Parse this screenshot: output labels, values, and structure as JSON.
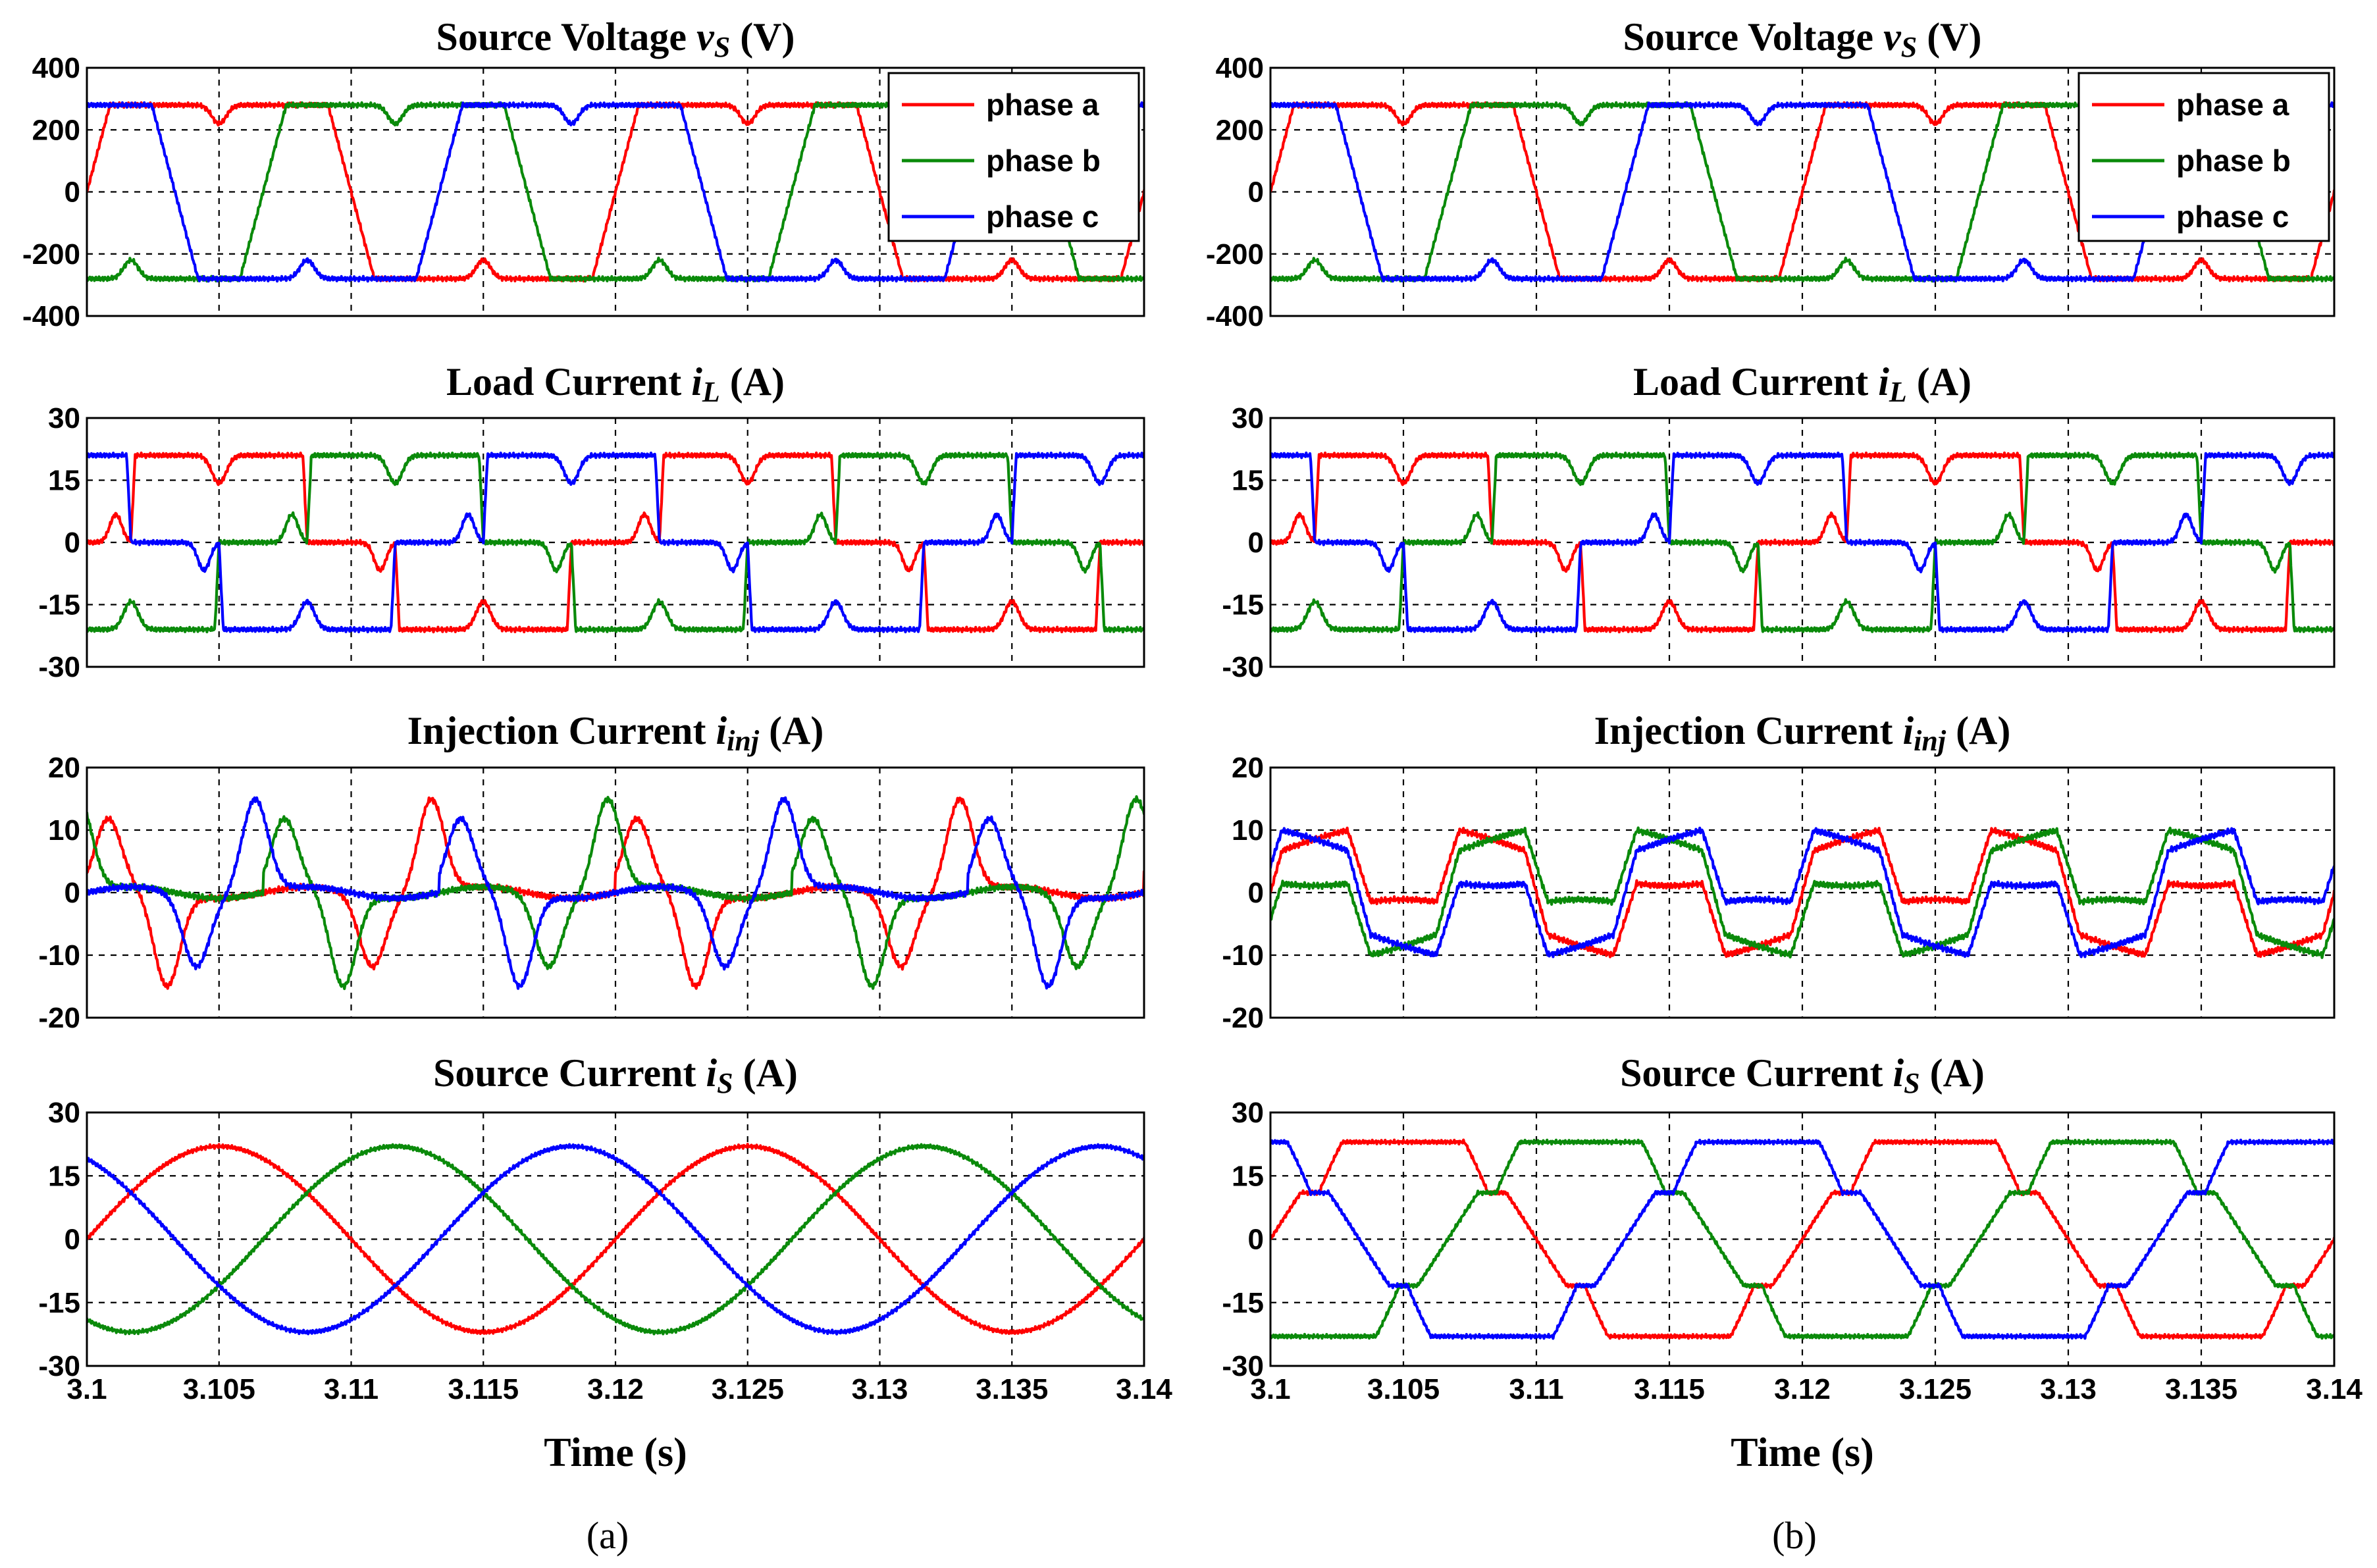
{
  "colors": {
    "phase_a": "#ff0000",
    "phase_b": "#0a8a0a",
    "phase_c": "#0000ff"
  },
  "legend": {
    "entries": [
      "phase a",
      "phase b",
      "phase c"
    ],
    "placement": "top-right of first panel"
  },
  "x_axis": {
    "label": "Time (s)",
    "range": [
      3.1,
      3.14
    ],
    "ticks": [
      "3.1",
      "3.105",
      "3.11",
      "3.115",
      "3.12",
      "3.125",
      "3.13",
      "3.135",
      "3.14"
    ]
  },
  "captions": [
    "(a)",
    "(b)"
  ],
  "panel_titles": [
    {
      "pre": "Source Voltage ",
      "sym": "v",
      "sub": "S",
      "post": " (V)"
    },
    {
      "pre": "Load Current ",
      "sym": "i",
      "sub": "L",
      "post": " (A)"
    },
    {
      "pre": "Injection Current ",
      "sym": "i",
      "sub": "inj",
      "post": " (A)"
    },
    {
      "pre": "Source Current ",
      "sym": "i",
      "sub": "S",
      "post": " (A)"
    }
  ],
  "y_axes": [
    {
      "range": [
        -400,
        400
      ],
      "ticks": [
        "400",
        "200",
        "0",
        "-200",
        "-400"
      ],
      "grid": [
        200,
        0,
        -200
      ]
    },
    {
      "range": [
        -30,
        30
      ],
      "ticks": [
        "30",
        "15",
        "0",
        "-15",
        "-30"
      ],
      "grid": [
        15,
        0,
        -15
      ]
    },
    {
      "range": [
        -20,
        20
      ],
      "ticks": [
        "20",
        "10",
        "0",
        "-10",
        "-20"
      ],
      "grid": [
        10,
        0,
        -10
      ]
    },
    {
      "range": [
        -30,
        30
      ],
      "ticks": [
        "30",
        "15",
        "0",
        "-15",
        "-30"
      ],
      "grid": [
        15,
        0,
        -15
      ]
    }
  ],
  "chart_data": [
    {
      "type": "line",
      "figure": "(a)",
      "title": "Source Voltage vS (V)",
      "xlabel": "",
      "ylim": [
        -400,
        400
      ],
      "grid": true,
      "x_range": [
        3.1,
        3.14
      ],
      "fundamental_hz": 50,
      "series": [
        {
          "name": "phase a",
          "phase_deg": 0,
          "amplitude": 280,
          "shape": "flat-topped trapezoid with notches"
        },
        {
          "name": "phase b",
          "phase_deg": -120,
          "amplitude": 280,
          "shape": "flat-topped trapezoid with notches"
        },
        {
          "name": "phase c",
          "phase_deg": 120,
          "amplitude": 280,
          "shape": "flat-topped trapezoid with notches"
        }
      ]
    },
    {
      "type": "line",
      "figure": "(a)",
      "title": "Load Current iL (A)",
      "xlabel": "",
      "ylim": [
        -30,
        30
      ],
      "grid": true,
      "x_range": [
        3.1,
        3.14
      ],
      "fundamental_hz": 50,
      "series": [
        {
          "phase_deg": 0,
          "amplitude": 21,
          "shape": "six-pulse rectifier current with 0 A gaps"
        },
        {
          "phase_deg": -120,
          "amplitude": 21,
          "shape": "six-pulse rectifier current with 0 A gaps"
        },
        {
          "phase_deg": 120,
          "amplitude": 21,
          "shape": "six-pulse rectifier current with 0 A gaps"
        }
      ]
    },
    {
      "type": "line",
      "figure": "(a)",
      "title": "Injection Current iinj (A)",
      "xlabel": "",
      "ylim": [
        -20,
        20
      ],
      "grid": true,
      "x_range": [
        3.1,
        3.14
      ],
      "fundamental_hz": 50,
      "series": [
        {
          "phase_deg": 0,
          "peak": 16,
          "shape": "harmonic spikes"
        },
        {
          "phase_deg": -120,
          "peak": 16,
          "shape": "harmonic spikes"
        },
        {
          "phase_deg": 120,
          "peak": 16,
          "shape": "harmonic spikes"
        }
      ]
    },
    {
      "type": "line",
      "figure": "(a)",
      "title": "Source Current iS (A)",
      "xlabel": "Time (s)",
      "ylim": [
        -30,
        30
      ],
      "grid": true,
      "x_range": [
        3.1,
        3.14
      ],
      "fundamental_hz": 50,
      "series": [
        {
          "phase_deg": 0,
          "amplitude": 22,
          "shape": "sinusoidal"
        },
        {
          "phase_deg": -120,
          "amplitude": 22,
          "shape": "sinusoidal"
        },
        {
          "phase_deg": 120,
          "amplitude": 22,
          "shape": "sinusoidal"
        }
      ]
    },
    {
      "type": "line",
      "figure": "(b)",
      "title": "Source Voltage vS (V)",
      "xlabel": "",
      "ylim": [
        -400,
        400
      ],
      "grid": true,
      "x_range": [
        3.1,
        3.14
      ],
      "fundamental_hz": 50,
      "series": [
        {
          "name": "phase a",
          "phase_deg": 0,
          "amplitude": 280,
          "shape": "flat-topped trapezoid with notches"
        },
        {
          "name": "phase b",
          "phase_deg": -120,
          "amplitude": 280,
          "shape": "flat-topped trapezoid with notches"
        },
        {
          "name": "phase c",
          "phase_deg": 120,
          "amplitude": 280,
          "shape": "flat-topped trapezoid with notches"
        }
      ]
    },
    {
      "type": "line",
      "figure": "(b)",
      "title": "Load Current iL (A)",
      "xlabel": "",
      "ylim": [
        -30,
        30
      ],
      "grid": true,
      "x_range": [
        3.1,
        3.14
      ],
      "fundamental_hz": 50,
      "series": [
        {
          "phase_deg": 0,
          "amplitude": 21,
          "shape": "six-pulse rectifier current with 0 A gaps"
        },
        {
          "phase_deg": -120,
          "amplitude": 21,
          "shape": "six-pulse rectifier current with 0 A gaps"
        },
        {
          "phase_deg": 120,
          "amplitude": 21,
          "shape": "six-pulse rectifier current with 0 A gaps"
        }
      ]
    },
    {
      "type": "line",
      "figure": "(b)",
      "title": "Injection Current iinj (A)",
      "xlabel": "",
      "ylim": [
        -20,
        20
      ],
      "grid": true,
      "x_range": [
        3.1,
        3.14
      ],
      "fundamental_hz": 50,
      "series": [
        {
          "phase_deg": 0,
          "peak": 11,
          "shape": "square-like compensating current"
        },
        {
          "phase_deg": -120,
          "peak": 11,
          "shape": "square-like compensating current"
        },
        {
          "phase_deg": 120,
          "peak": 11,
          "shape": "square-like compensating current"
        }
      ]
    },
    {
      "type": "line",
      "figure": "(b)",
      "title": "Source Current iS (A)",
      "xlabel": "Time (s)",
      "ylim": [
        -30,
        30
      ],
      "grid": true,
      "x_range": [
        3.1,
        3.14
      ],
      "fundamental_hz": 50,
      "series": [
        {
          "phase_deg": 0,
          "amplitude": 23,
          "plateau": 11,
          "shape": "stepped (flat top with shoulder)"
        },
        {
          "phase_deg": -120,
          "amplitude": 23,
          "plateau": 11,
          "shape": "stepped (flat top with shoulder)"
        },
        {
          "phase_deg": 120,
          "amplitude": 23,
          "plateau": 11,
          "shape": "stepped (flat top with shoulder)"
        }
      ]
    }
  ]
}
